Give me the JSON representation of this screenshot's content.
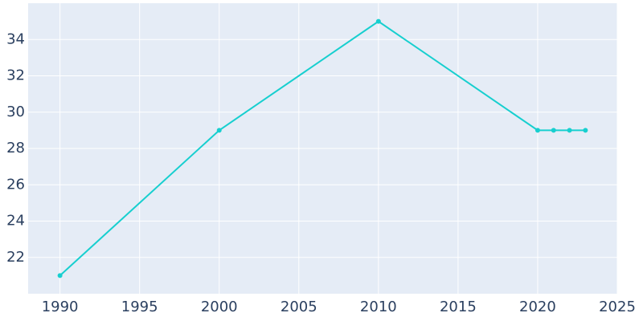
{
  "chart_data": {
    "type": "line",
    "x": [
      1990,
      2000,
      2010,
      2020,
      2021,
      2022,
      2023
    ],
    "values": [
      21,
      29,
      35,
      29,
      29,
      29,
      29
    ],
    "color": "#17cfcf",
    "xlim": [
      1988,
      2025
    ],
    "xticks": [
      1990,
      1995,
      2000,
      2005,
      2010,
      2015,
      2020,
      2025
    ],
    "ylim": [
      20,
      36
    ],
    "yticks": [
      22,
      24,
      26,
      28,
      30,
      32,
      34
    ],
    "grid": true,
    "background": "#e5ecf6"
  }
}
